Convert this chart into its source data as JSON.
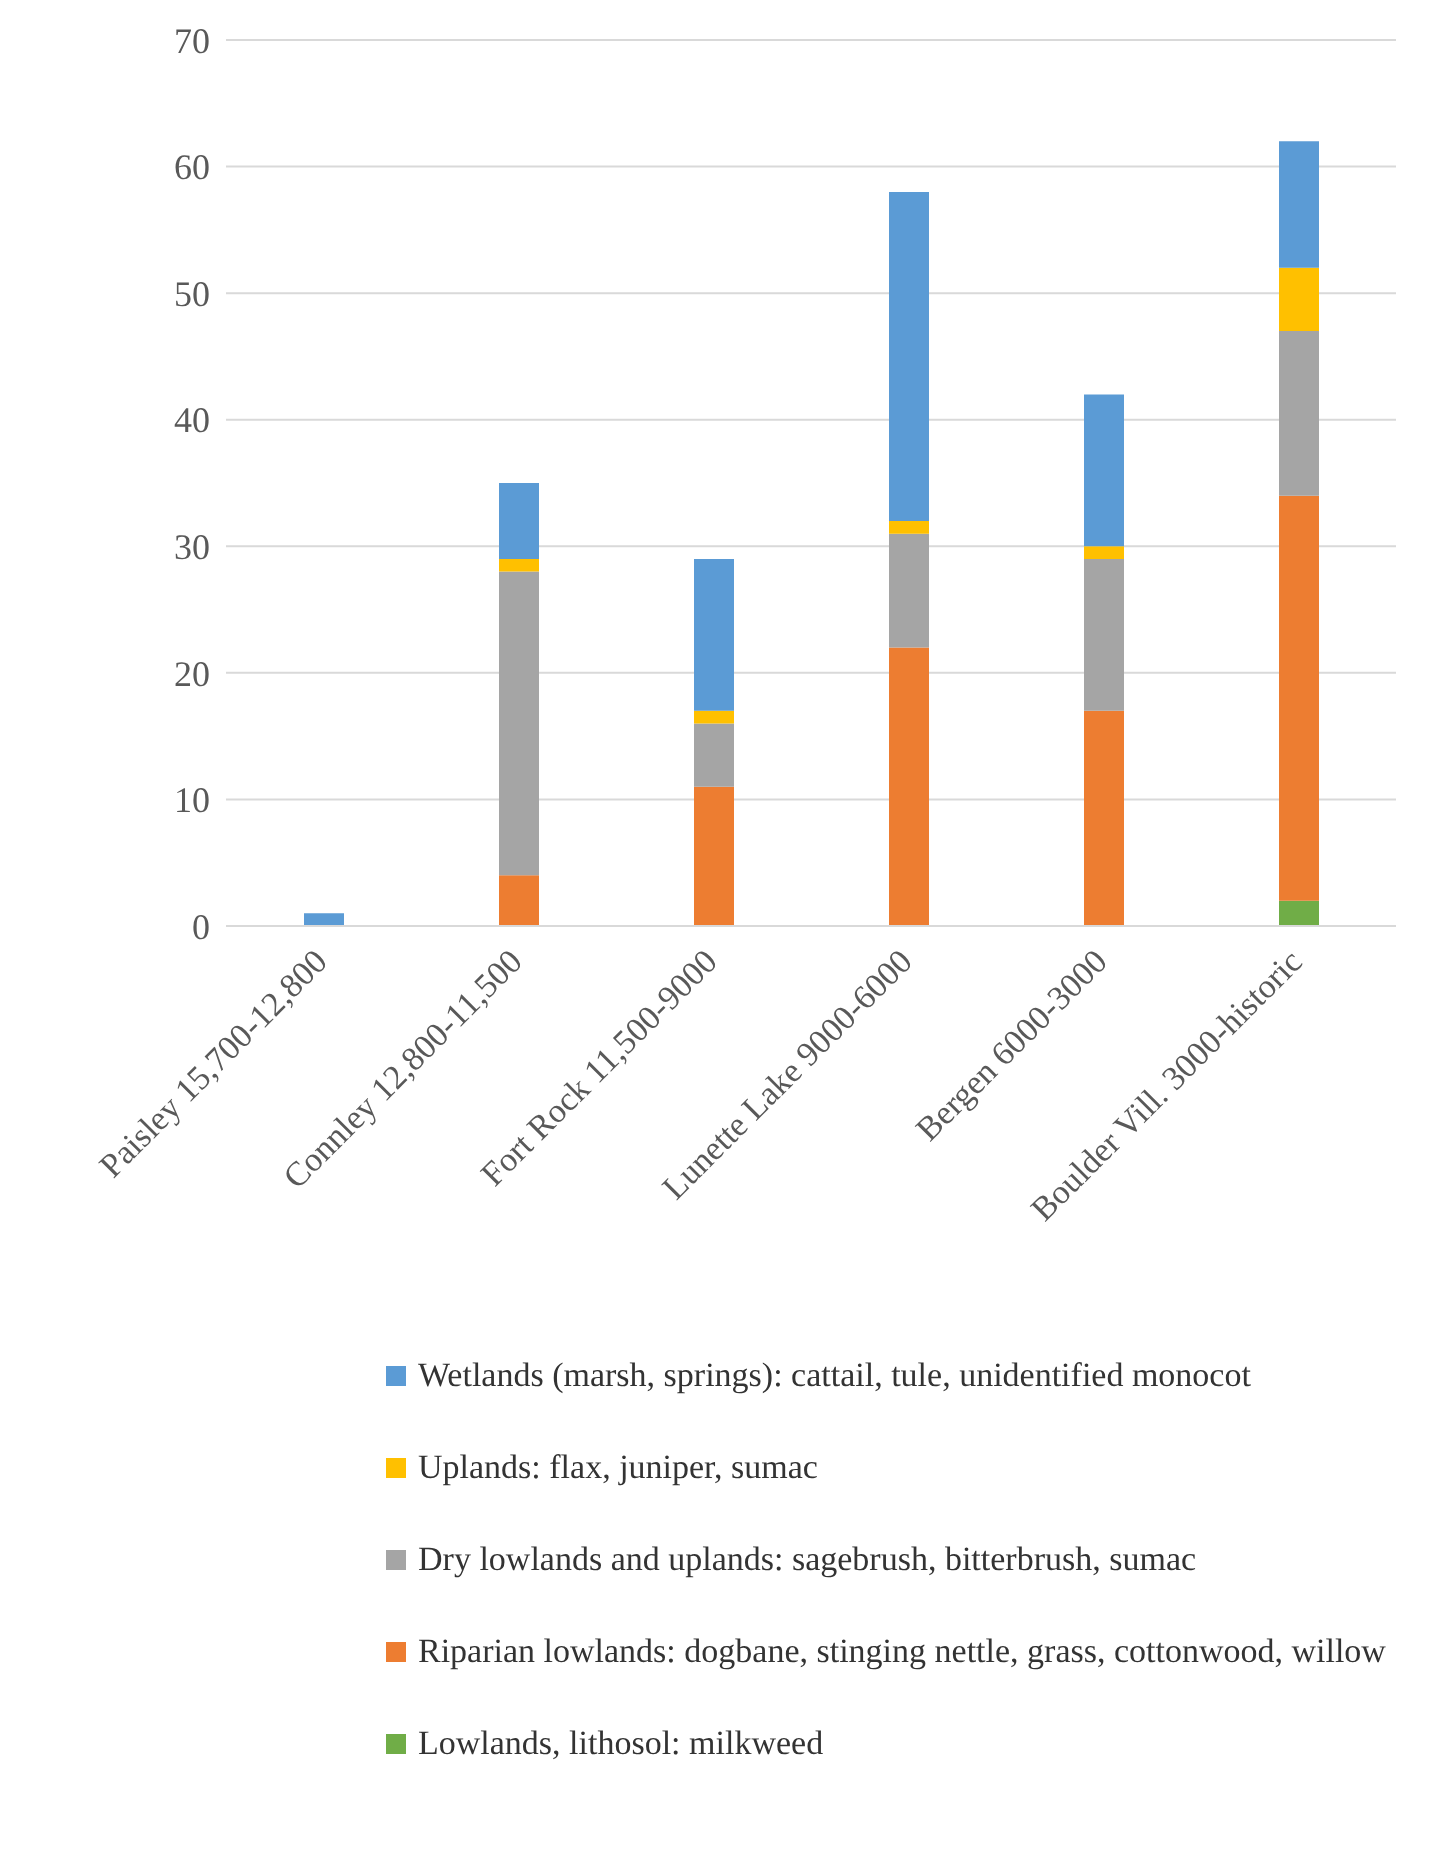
{
  "chart_data": {
    "type": "bar",
    "stacked": true,
    "categories": [
      "Paisley 15,700-12,800",
      "Connley 12,800-11,500",
      "Fort Rock 11,500-9000",
      "Lunette Lake 9000-6000",
      "Bergen 6000-3000",
      "Boulder Vill. 3000-historic"
    ],
    "series": [
      {
        "name": "Lowlands, lithosol: milkweed",
        "color": "#70ad47",
        "values": [
          0,
          0,
          0,
          0,
          0,
          2
        ]
      },
      {
        "name": "Riparian lowlands: dogbane, stinging nettle, grass, cottonwood, willow",
        "color": "#ed7d31",
        "values": [
          0,
          4,
          11,
          22,
          17,
          32
        ]
      },
      {
        "name": "Dry lowlands and uplands: sagebrush, bitterbrush, sumac",
        "color": "#a5a5a5",
        "values": [
          0,
          24,
          5,
          9,
          12,
          13
        ]
      },
      {
        "name": "Uplands: flax, juniper, sumac",
        "color": "#ffc000",
        "values": [
          0,
          1,
          1,
          1,
          1,
          5
        ]
      },
      {
        "name": "Wetlands (marsh, springs): cattail, tule, unidentified monocot",
        "color": "#5b9bd5",
        "values": [
          1,
          6,
          12,
          26,
          12,
          10
        ]
      }
    ],
    "ylim": [
      0,
      70
    ],
    "yticks": [
      0,
      10,
      20,
      30,
      40,
      50,
      60,
      70
    ],
    "grid": "y",
    "legend": "bottom"
  }
}
